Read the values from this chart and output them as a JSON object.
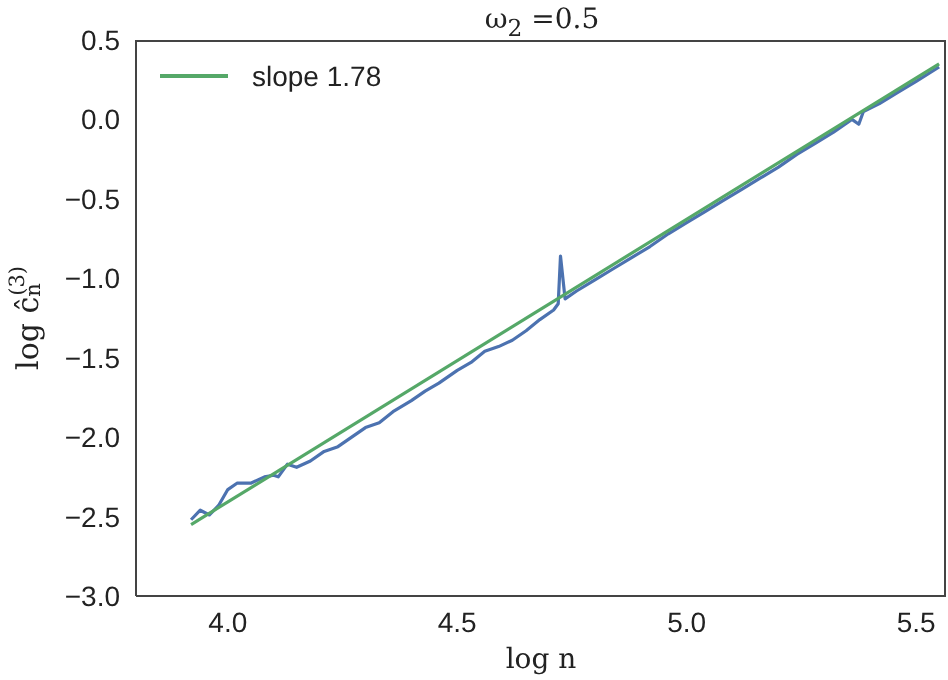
{
  "chart_data": {
    "type": "line",
    "title": "ω$_{2}$ =0.5",
    "xlabel": "log n",
    "ylabel": "log ĉ$_{n}$$^{(3)}$",
    "series": [
      {
        "color": "#4c72b0",
        "x": [
          3.92,
          3.94,
          3.96,
          3.98,
          4.0,
          4.02,
          4.05,
          4.08,
          4.1,
          4.11,
          4.13,
          4.15,
          4.18,
          4.21,
          4.24,
          4.27,
          4.3,
          4.33,
          4.36,
          4.4,
          4.43,
          4.46,
          4.5,
          4.53,
          4.56,
          4.59,
          4.62,
          4.65,
          4.68,
          4.71,
          4.72,
          4.725,
          4.735,
          4.76,
          4.8,
          4.84,
          4.88,
          4.92,
          4.96,
          5.0,
          5.04,
          5.08,
          5.12,
          5.16,
          5.2,
          5.24,
          5.28,
          5.32,
          5.36,
          5.375,
          5.385,
          5.42,
          5.46,
          5.5,
          5.55
        ],
        "values": [
          -2.52,
          -2.46,
          -2.49,
          -2.43,
          -2.33,
          -2.29,
          -2.29,
          -2.25,
          -2.24,
          -2.25,
          -2.17,
          -2.19,
          -2.15,
          -2.09,
          -2.06,
          -2.0,
          -1.94,
          -1.91,
          -1.84,
          -1.77,
          -1.71,
          -1.66,
          -1.58,
          -1.53,
          -1.46,
          -1.43,
          -1.39,
          -1.33,
          -1.26,
          -1.2,
          -1.16,
          -0.86,
          -1.13,
          -1.08,
          -1.01,
          -0.94,
          -0.87,
          -0.8,
          -0.72,
          -0.65,
          -0.58,
          -0.51,
          -0.44,
          -0.37,
          -0.3,
          -0.22,
          -0.15,
          -0.08,
          0.0,
          -0.03,
          0.05,
          0.1,
          0.17,
          0.24,
          0.33
        ]
      },
      {
        "name": "slope 1.78",
        "color": "#55a868",
        "x": [
          3.92,
          5.55
        ],
        "values": [
          -2.55,
          0.35
        ]
      }
    ],
    "xlim": [
      3.8,
      5.565
    ],
    "xticks": [
      {
        "value": 4,
        "label": "4.0"
      },
      4.5,
      {
        "value": 5,
        "label": "5.0"
      },
      5.5
    ],
    "ylim": [
      -3,
      0.5
    ],
    "yticks": [
      {
        "value": -3,
        "label": "−3.0"
      },
      {
        "value": -2.5,
        "label": "−2.5"
      },
      {
        "value": -2,
        "label": "−2.0"
      },
      {
        "value": -1.5,
        "label": "−1.5"
      },
      {
        "value": -1,
        "label": "−1.0"
      },
      {
        "value": -0.5,
        "label": "−0.5"
      },
      {
        "value": 0,
        "label": "0.0"
      },
      0.5
    ],
    "grid": false,
    "legend": "top left",
    "marker": "none",
    "line_style": "solid"
  }
}
